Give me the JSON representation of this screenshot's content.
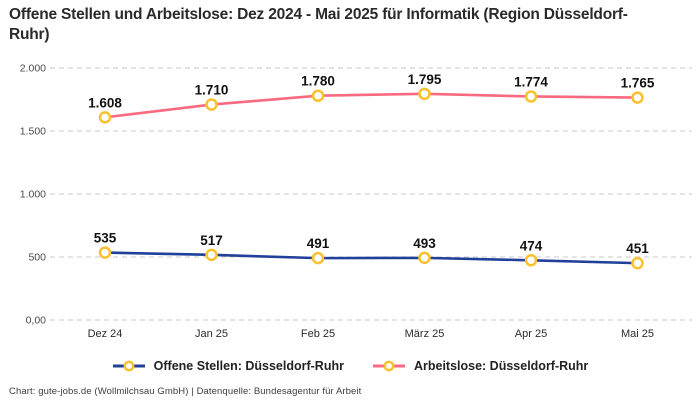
{
  "header": {
    "title": "Offene Stellen und Arbeitslose: Dez 2024 - Mai 2025 für Informatik (Region Düsseldorf-Ruhr)"
  },
  "chart_data": {
    "type": "line",
    "title": "Offene Stellen und Arbeitslose: Dez 2024 - Mai 2025 für Informatik (Region Düsseldorf-Ruhr)",
    "categories": [
      "Dez 24",
      "Jan 25",
      "Feb 25",
      "März 25",
      "Apr 25",
      "Mai 25"
    ],
    "series": [
      {
        "name": "Offene Stellen: Düsseldorf-Ruhr",
        "values": [
          535,
          517,
          491,
          493,
          474,
          451
        ],
        "labels": [
          "535",
          "517",
          "491",
          "493",
          "474",
          "451"
        ],
        "color": "#21409A"
      },
      {
        "name": "Arbeitslose: Düsseldorf-Ruhr",
        "values": [
          1608,
          1710,
          1780,
          1795,
          1774,
          1765
        ],
        "labels": [
          "1.608",
          "1.710",
          "1.780",
          "1.795",
          "1.774",
          "1.765"
        ],
        "color": "#F96A80"
      }
    ],
    "yticks": [
      {
        "value": 0,
        "label": "0,00"
      },
      {
        "value": 500,
        "label": "500"
      },
      {
        "value": 1000,
        "label": "1.000"
      },
      {
        "value": 1500,
        "label": "1.500"
      },
      {
        "value": 2000,
        "label": "2.000"
      }
    ],
    "ylim": [
      0,
      2000
    ],
    "grid": "horizontal-dashed",
    "grid_color": "#C9C9C9",
    "marker_stroke_color": "#FBC02D",
    "marker_fill_color": "#FFFFFF",
    "label_color": "#111111",
    "axis_text_color": "#4A4A4A",
    "legend_position": "bottom"
  },
  "footer": {
    "credit": "Chart: gute-jobs.de (Wollmilchsau GmbH) | Datenquelle: Bundesagentur für Arbeit"
  }
}
